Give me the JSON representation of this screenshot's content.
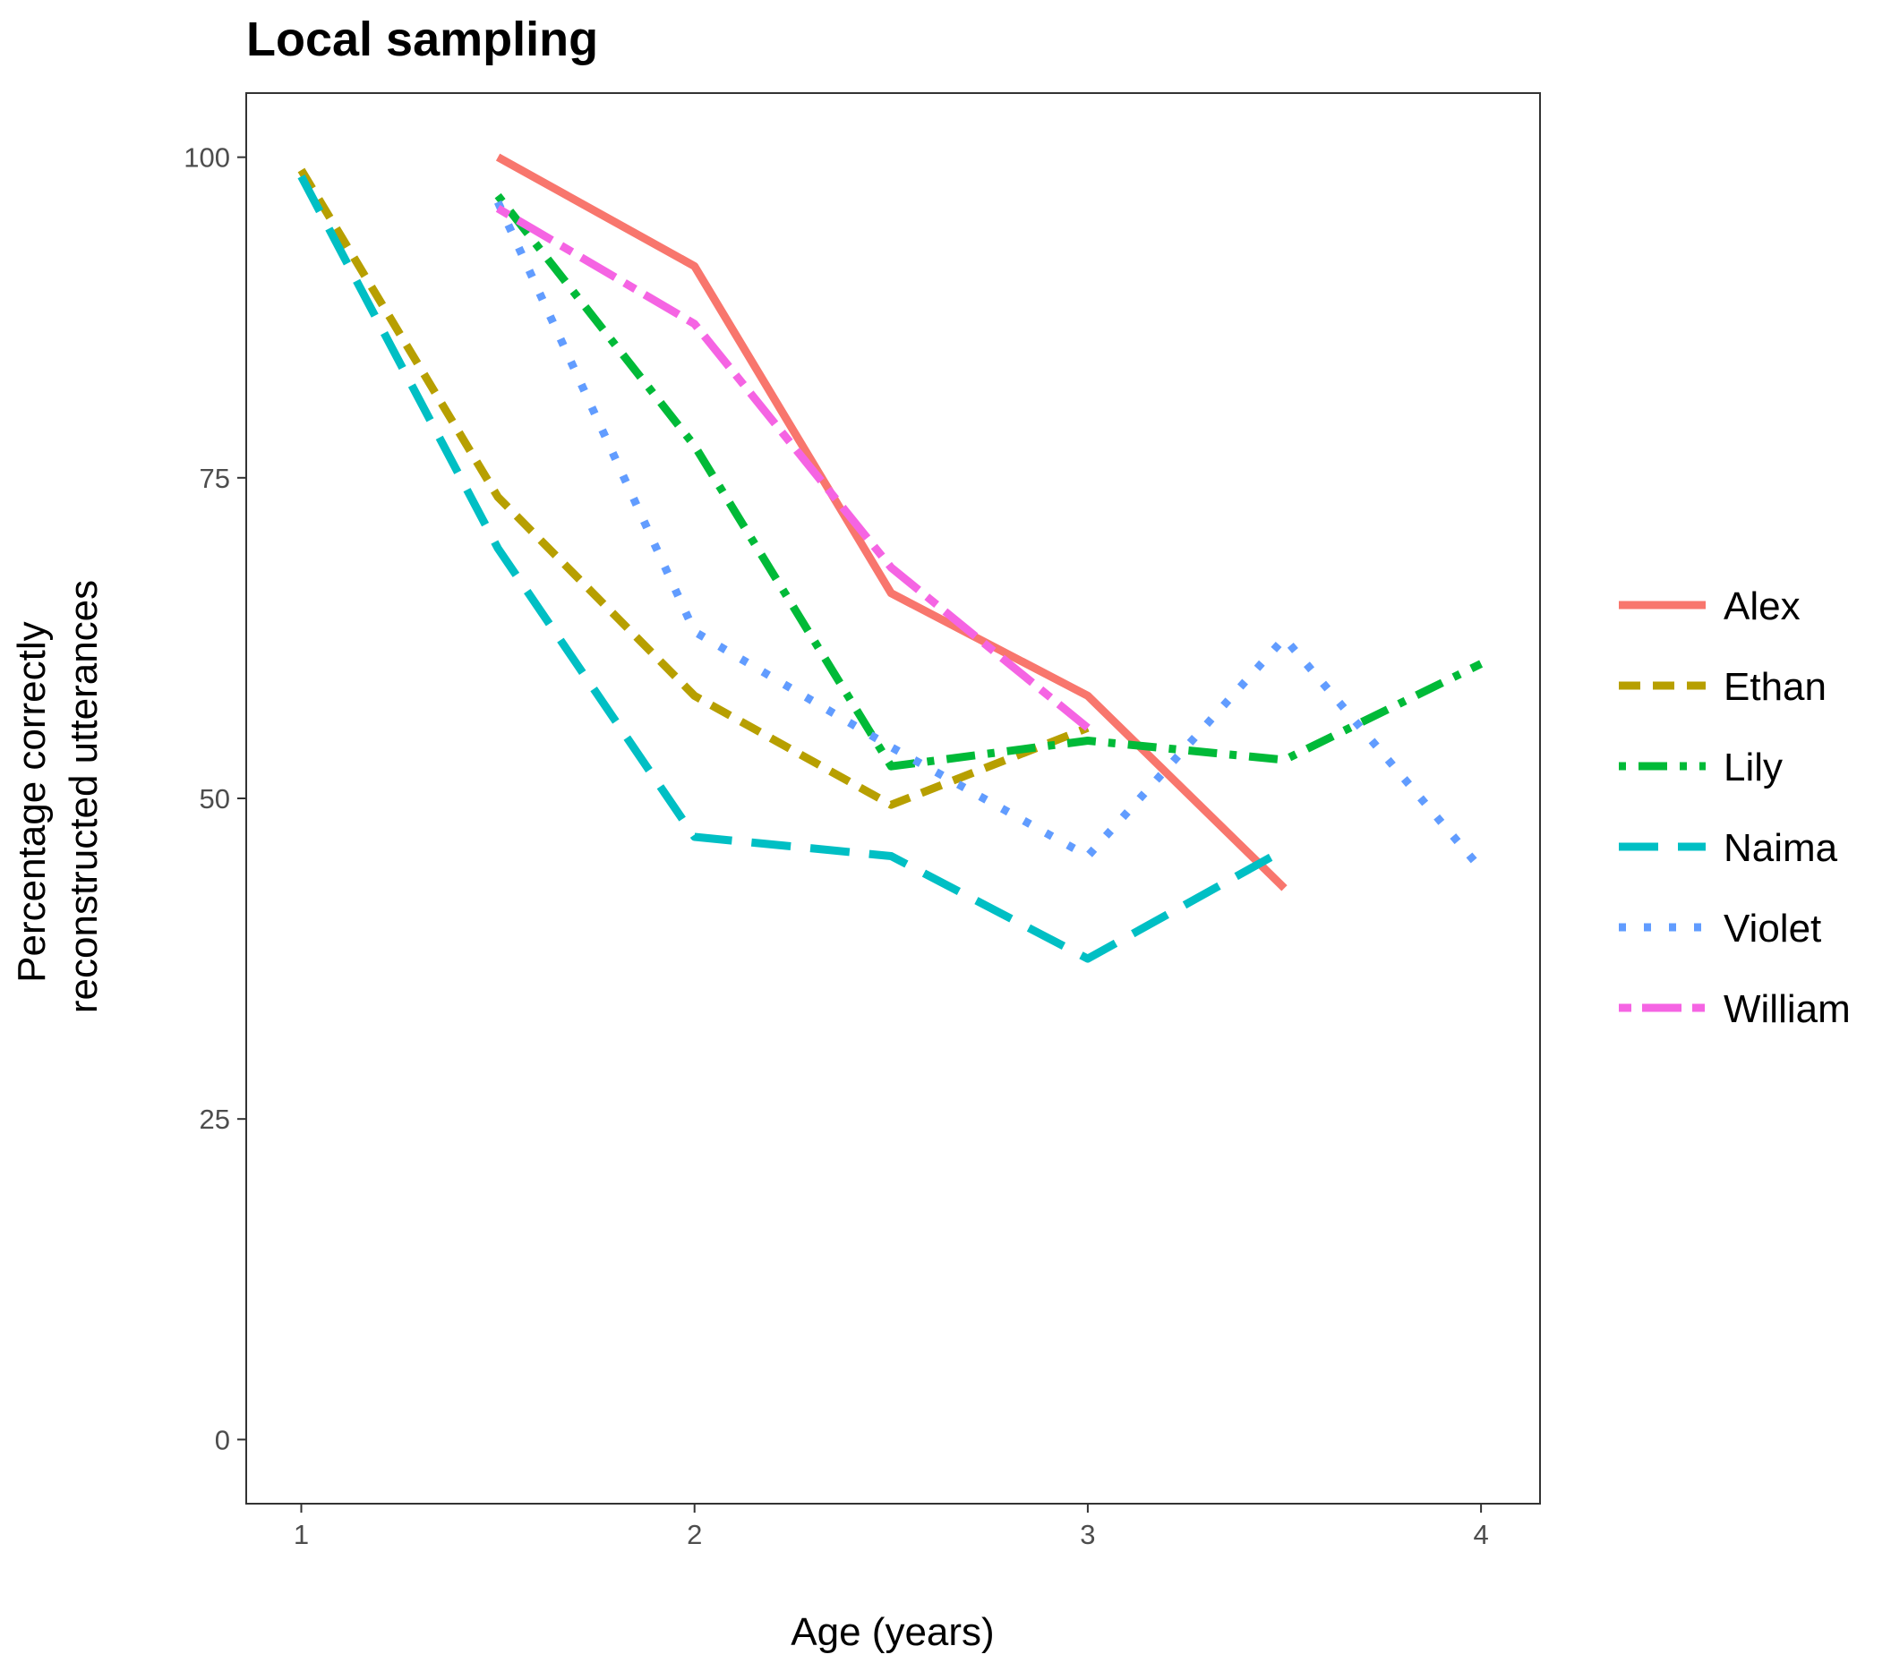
{
  "chart_data": {
    "type": "line",
    "title": "Local sampling",
    "xlabel": "Age (years)",
    "ylabel_lines": [
      "Percentage correctly",
      "reconstructed utterances"
    ],
    "xlim": [
      0.86,
      4.15
    ],
    "ylim": [
      -5,
      105
    ],
    "x_ticks": [
      1,
      2,
      3,
      4
    ],
    "y_ticks": [
      0,
      25,
      50,
      75,
      100
    ],
    "x_tick_labels": [
      "1",
      "2",
      "3",
      "4"
    ],
    "y_tick_labels": [
      "0",
      "25",
      "50",
      "75",
      "100"
    ],
    "grid": false,
    "legend_position": "right",
    "series": [
      {
        "name": "Alex",
        "color": "#f8766d",
        "linetype": "solid",
        "x": [
          1.5,
          2.0,
          2.5,
          3.0,
          3.5
        ],
        "y": [
          100,
          91.5,
          66,
          58,
          43
        ]
      },
      {
        "name": "Ethan",
        "color": "#b79f00",
        "linetype": "dashed",
        "x": [
          1.0,
          1.5,
          2.0,
          2.5,
          3.0
        ],
        "y": [
          99,
          73.5,
          58,
          49.5,
          55.5
        ]
      },
      {
        "name": "Lily",
        "color": "#00ba38",
        "linetype": "dotdash",
        "x": [
          1.5,
          2.0,
          2.5,
          3.0,
          3.5,
          4.0
        ],
        "y": [
          97,
          77.5,
          52.5,
          54.5,
          53,
          60.5
        ]
      },
      {
        "name": "Naima",
        "color": "#00bfc4",
        "linetype": "longdash",
        "x": [
          1.0,
          1.5,
          2.0,
          2.5,
          3.0,
          3.5
        ],
        "y": [
          98.5,
          69.5,
          47,
          45.5,
          37.5,
          46
        ]
      },
      {
        "name": "Violet",
        "color": "#619cff",
        "linetype": "dotted",
        "x": [
          1.5,
          2.0,
          2.5,
          3.0,
          3.5,
          4.0
        ],
        "y": [
          96.5,
          63,
          54,
          45.5,
          62.5,
          44.5
        ]
      },
      {
        "name": "William",
        "color": "#f564e3",
        "linetype": "twodash",
        "x": [
          1.5,
          2.0,
          2.5,
          3.0
        ],
        "y": [
          96,
          87,
          68,
          55.5
        ]
      }
    ]
  }
}
